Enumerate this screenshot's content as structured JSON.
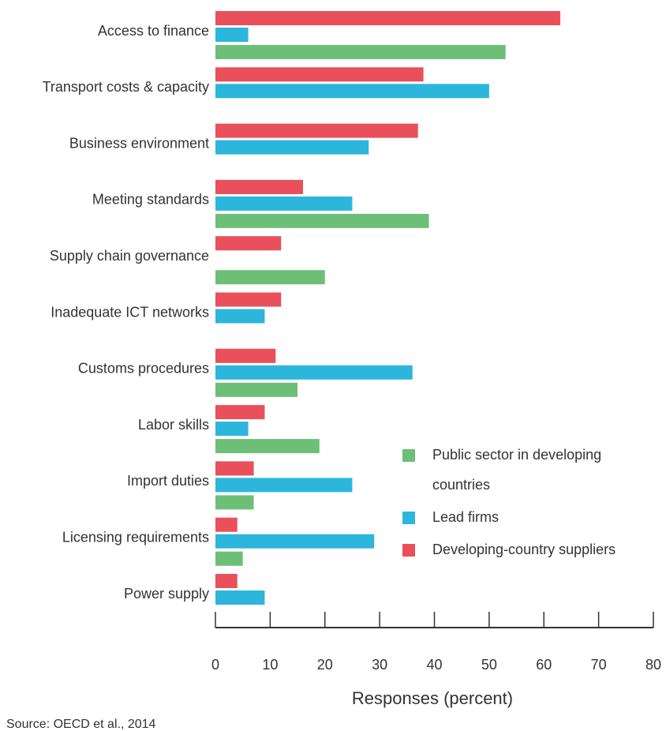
{
  "chart_data": {
    "type": "hbar",
    "categories": [
      "Access to finance",
      "Transport costs & capacity",
      "Business environment",
      "Meeting standards",
      "Supply chain governance",
      "Inadequate ICT networks",
      "Customs procedures",
      "Labor skills",
      "Import duties",
      "Licensing requirements",
      "Power supply"
    ],
    "series": [
      {
        "name": "Developing-country suppliers",
        "color": "#e9505b",
        "values": [
          63,
          38,
          37,
          16,
          12,
          12,
          11,
          9,
          7,
          4,
          4
        ]
      },
      {
        "name": "Lead firms",
        "color": "#2cb6dc",
        "values": [
          6,
          50,
          28,
          25,
          null,
          9,
          36,
          6,
          25,
          29,
          9
        ]
      },
      {
        "name": "Public sector in developing countries",
        "color": "#6dbf78",
        "values": [
          53,
          null,
          null,
          39,
          20,
          null,
          15,
          19,
          7,
          5,
          null
        ]
      }
    ],
    "legend_order": [
      2,
      1,
      0
    ],
    "xlim": [
      0,
      80
    ],
    "xticks": [
      0,
      10,
      20,
      30,
      40,
      50,
      60,
      70,
      80
    ],
    "x_label": "Responses (percent)",
    "source": "Source: OECD et al., 2014"
  }
}
